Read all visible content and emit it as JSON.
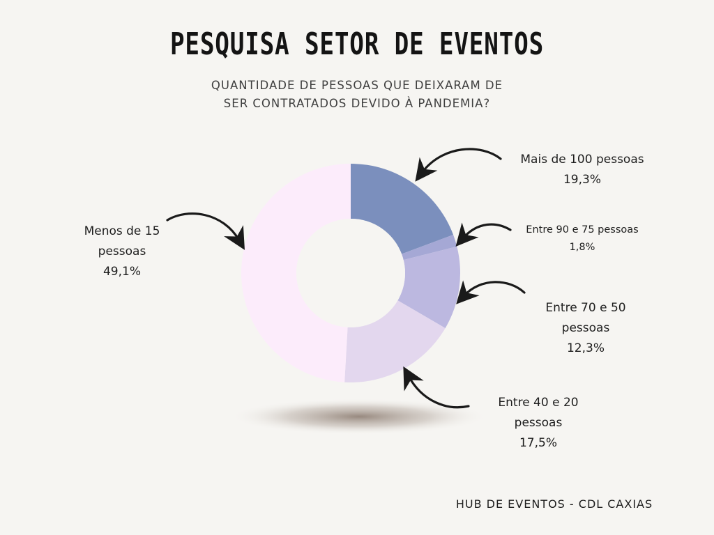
{
  "title": "PESQUISA SETOR DE EVENTOS",
  "subtitle": [
    "QUANTIDADE DE PESSOAS QUE DEIXARAM DE",
    "SER CONTRATADOS DEVIDO À PANDEMIA?"
  ],
  "footer": "HUB DE EVENTOS - CDL CAXIAS",
  "chart_data": {
    "type": "pie",
    "donut": true,
    "title": "QUANTIDADE DE PESSOAS QUE DEIXARAM DE SER CONTRATADOS DEVIDO À PANDEMIA?",
    "slices": [
      {
        "label": "Mais de 100 pessoas",
        "value": 19.3,
        "value_label": "19,3%",
        "color": "#7b8fbd"
      },
      {
        "label": "Entre 90 e 75 pessoas",
        "value": 1.8,
        "value_label": "1,8%",
        "color": "#a5a8d5"
      },
      {
        "label": "Entre 70 e 50 pessoas",
        "value": 12.3,
        "value_label": "12,3%",
        "color": "#bcb8e0"
      },
      {
        "label": "Entre 40 e 20 pessoas",
        "value": 17.5,
        "value_label": "17,5%",
        "color": "#e3d7ee"
      },
      {
        "label": "Menos de 15 pessoas",
        "value": 49.1,
        "value_label": "49,1%",
        "color": "#fcecfb"
      }
    ]
  },
  "labels": {
    "mais100": [
      "Mais de 100 pessoas",
      "19,3%"
    ],
    "entre90": [
      "Entre 90 e 75 pessoas",
      "1,8%"
    ],
    "entre70": [
      "Entre 70 e 50",
      "pessoas",
      "12,3%"
    ],
    "entre40": [
      "Entre 40 e 20",
      "pessoas",
      "17,5%"
    ],
    "menos15": [
      "Menos de 15",
      "pessoas",
      "49,1%"
    ]
  }
}
